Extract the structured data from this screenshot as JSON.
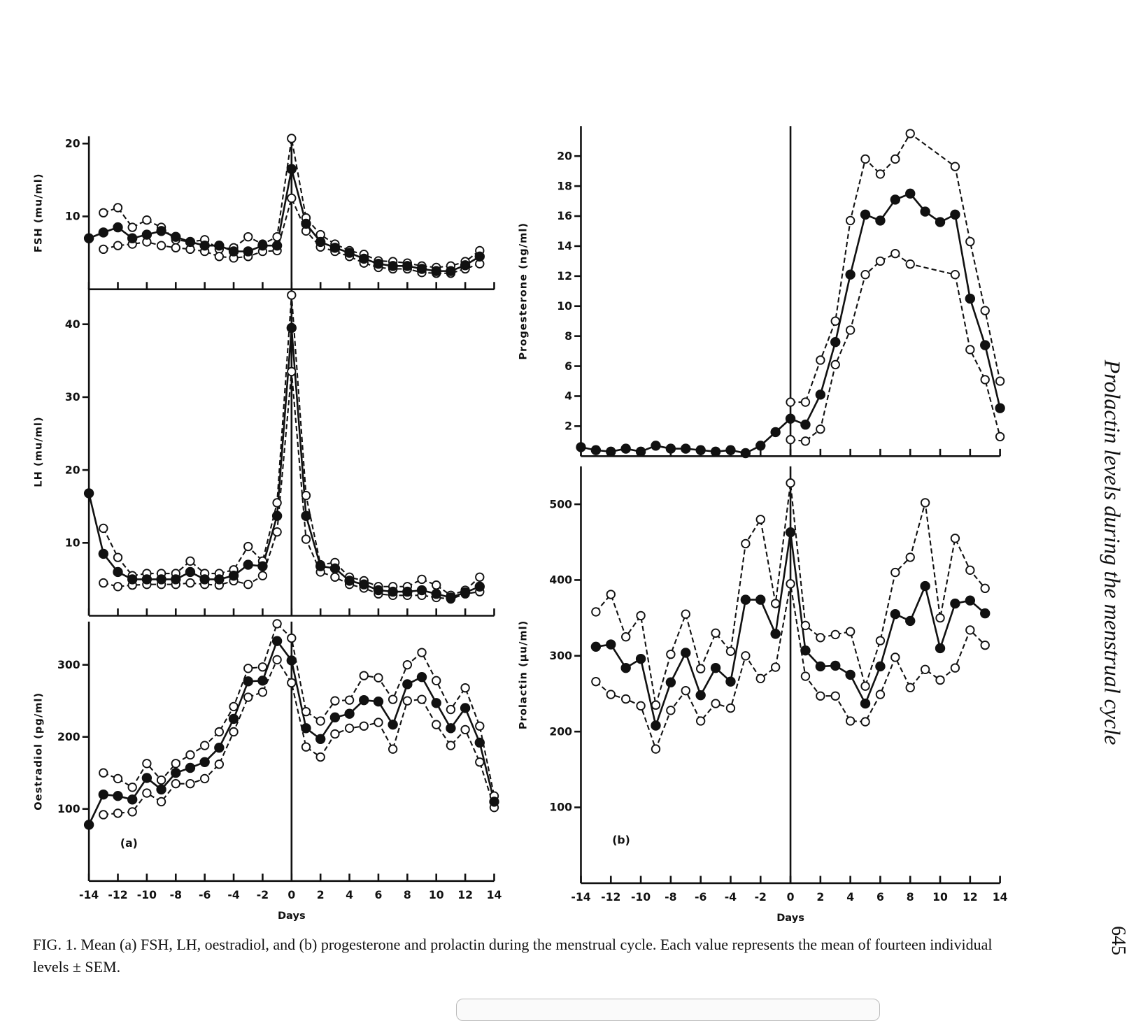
{
  "chart_data": [
    {
      "type": "line",
      "ylabel": "FSH (mu/ml)",
      "xlim": [
        -14,
        14
      ],
      "xticks": [
        -14,
        -12,
        -10,
        -8,
        -6,
        -4,
        -2,
        0,
        2,
        4,
        6,
        8,
        10,
        12,
        14
      ],
      "ylim": [
        0,
        21
      ],
      "yticks": [
        10,
        20
      ],
      "vline": 0,
      "x": [
        -14,
        -13,
        -12,
        -11,
        -10,
        -9,
        -8,
        -7,
        -6,
        -5,
        -4,
        -3,
        -2,
        -1,
        0,
        1,
        2,
        3,
        4,
        5,
        6,
        7,
        8,
        9,
        10,
        11,
        12,
        13,
        14
      ],
      "series": [
        {
          "color": "#111",
          "line": "dashed",
          "marker": "open",
          "values": [
            null,
            10.5,
            11.2,
            8.5,
            9.5,
            8.5,
            6.8,
            6.5,
            6.8,
            5.5,
            5.7,
            7.2,
            6.2,
            7.2,
            20.7,
            9.8,
            7.5,
            6.2,
            5.3,
            4.8,
            3.9,
            3.8,
            3.6,
            3.2,
            3,
            3.2,
            3.8,
            5.3,
            null
          ]
        },
        {
          "color": "#111",
          "line": "dashed",
          "marker": "open",
          "values": [
            null,
            5.5,
            6,
            6.2,
            6.5,
            6,
            5.7,
            5.5,
            5.2,
            4.5,
            4.3,
            4.5,
            5.2,
            5.3,
            12.5,
            8,
            5.8,
            5.2,
            4.5,
            3.6,
            3,
            2.8,
            2.8,
            2.3,
            2.2,
            2.2,
            2.8,
            3.5,
            null
          ]
        },
        {
          "color": "#111",
          "line": "solid",
          "marker": "filled",
          "values": [
            7,
            7.8,
            8.5,
            7,
            7.5,
            8,
            7.2,
            6.5,
            6,
            6,
            5.2,
            5.2,
            6,
            6,
            16.5,
            9,
            6.5,
            5.7,
            5,
            4.2,
            3.5,
            3.2,
            3.2,
            2.8,
            2.5,
            2.5,
            3.3,
            4.5,
            null
          ]
        }
      ]
    },
    {
      "type": "line",
      "ylabel": "LH (mu/ml)",
      "xlim": [
        -14,
        14
      ],
      "xticks": [
        -14,
        -12,
        -10,
        -8,
        -6,
        -4,
        -2,
        0,
        2,
        4,
        6,
        8,
        10,
        12,
        14
      ],
      "ylim": [
        0,
        45
      ],
      "yticks": [
        10,
        20,
        30,
        40
      ],
      "vline": 0,
      "x": [
        -14,
        -13,
        -12,
        -11,
        -10,
        -9,
        -8,
        -7,
        -6,
        -5,
        -4,
        -3,
        -2,
        -1,
        0,
        1,
        2,
        3,
        4,
        5,
        6,
        7,
        8,
        9,
        10,
        11,
        12,
        13,
        14
      ],
      "series": [
        {
          "color": "#111",
          "line": "dashed",
          "marker": "open",
          "values": [
            null,
            12,
            8,
            5.5,
            5.8,
            5.8,
            5.8,
            7.5,
            5.8,
            5.8,
            6.3,
            9.5,
            7.5,
            15.5,
            44,
            16.5,
            7,
            7.3,
            5.3,
            4.8,
            4,
            4,
            4,
            5,
            4.2,
            2.8,
            3.5,
            5.3,
            null
          ]
        },
        {
          "color": "#111",
          "line": "dashed",
          "marker": "open",
          "values": [
            null,
            4.5,
            4,
            4.2,
            4.3,
            4.3,
            4.3,
            4.5,
            4.3,
            4.2,
            4.8,
            4.3,
            5.5,
            11.5,
            33.5,
            10.5,
            6,
            5.3,
            4.3,
            3.8,
            3,
            2.8,
            2.8,
            2.8,
            2.5,
            2.3,
            3,
            3.3,
            null
          ]
        },
        {
          "color": "#111",
          "line": "solid",
          "marker": "filled",
          "values": [
            16.8,
            8.5,
            6,
            5,
            5,
            5,
            5,
            6,
            5,
            5,
            5.5,
            7,
            6.8,
            13.7,
            39.5,
            13.7,
            6.8,
            6.5,
            4.8,
            4.3,
            3.5,
            3.3,
            3.3,
            3.5,
            3,
            2.5,
            3.2,
            4,
            null
          ]
        }
      ]
    },
    {
      "type": "line",
      "ylabel": "Oestradiol (pg/ml)",
      "xlabel": "Days",
      "annotation": "(a)",
      "xlim": [
        -14,
        14
      ],
      "xticks": [
        -14,
        -12,
        -10,
        -8,
        -6,
        -4,
        -2,
        0,
        2,
        4,
        6,
        8,
        10,
        12,
        14
      ],
      "ylim": [
        0,
        360
      ],
      "yticks": [
        100,
        200,
        300
      ],
      "vline": 0,
      "x": [
        -14,
        -13,
        -12,
        -11,
        -10,
        -9,
        -8,
        -7,
        -6,
        -5,
        -4,
        -3,
        -2,
        -1,
        0,
        1,
        2,
        3,
        4,
        5,
        6,
        7,
        8,
        9,
        10,
        11,
        12,
        13,
        14
      ],
      "series": [
        {
          "color": "#111",
          "line": "dashed",
          "marker": "open",
          "values": [
            null,
            150,
            142,
            130,
            163,
            140,
            163,
            175,
            188,
            207,
            242,
            295,
            297,
            357,
            337,
            235,
            222,
            250,
            251,
            285,
            282,
            252,
            300,
            317,
            278,
            238,
            268,
            215,
            118
          ]
        },
        {
          "color": "#111",
          "line": "dashed",
          "marker": "open",
          "values": [
            null,
            92,
            94,
            96,
            122,
            110,
            135,
            135,
            142,
            162,
            207,
            255,
            262,
            307,
            275,
            186,
            172,
            204,
            212,
            215,
            220,
            183,
            250,
            252,
            217,
            188,
            210,
            165,
            102
          ]
        },
        {
          "color": "#111",
          "line": "solid",
          "marker": "filled",
          "values": [
            78,
            120,
            118,
            113,
            143,
            127,
            150,
            157,
            165,
            185,
            225,
            277,
            278,
            333,
            306,
            212,
            197,
            227,
            232,
            251,
            249,
            217,
            273,
            283,
            247,
            212,
            240,
            192,
            110
          ]
        }
      ]
    },
    {
      "type": "line",
      "ylabel": "Progesterone (ng/ml)",
      "xlim": [
        -14,
        14
      ],
      "xticks": [
        -14,
        -12,
        -10,
        -8,
        -6,
        -4,
        -2,
        0,
        2,
        4,
        6,
        8,
        10,
        12,
        14
      ],
      "ylim": [
        0,
        22
      ],
      "yticks": [
        2,
        4,
        6,
        8,
        10,
        12,
        14,
        16,
        18,
        20
      ],
      "vline": 0,
      "x": [
        -14,
        -13,
        -12,
        -11,
        -10,
        -9,
        -8,
        -7,
        -6,
        -5,
        -4,
        -3,
        -2,
        -1,
        0,
        1,
        2,
        3,
        4,
        5,
        6,
        7,
        8,
        9,
        10,
        11,
        12,
        13,
        14
      ],
      "series": [
        {
          "color": "#111",
          "line": "dashed",
          "marker": "open",
          "x": [
            0,
            1,
            2,
            3,
            4,
            5,
            6,
            7,
            8,
            11,
            12,
            13,
            14
          ],
          "values": [
            3.6,
            3.6,
            6.4,
            9,
            15.7,
            19.8,
            18.8,
            19.8,
            21.5,
            19.3,
            14.3,
            9.7,
            5
          ]
        },
        {
          "color": "#111",
          "line": "dashed",
          "marker": "open",
          "x": [
            0,
            1,
            2,
            3,
            4,
            5,
            6,
            7,
            8,
            11,
            12,
            13,
            14
          ],
          "values": [
            1.1,
            1,
            1.8,
            6.1,
            8.4,
            12.1,
            13,
            13.5,
            12.8,
            12.1,
            7.1,
            5.1,
            1.3
          ]
        },
        {
          "color": "#111",
          "line": "solid",
          "marker": "filled",
          "values": [
            0.6,
            0.4,
            0.3,
            0.5,
            0.3,
            0.7,
            0.5,
            0.5,
            0.4,
            0.3,
            0.4,
            0.2,
            0.7,
            1.6,
            2.5,
            2.1,
            4.1,
            7.6,
            12.1,
            16.1,
            15.7,
            17.1,
            17.5,
            16.3,
            15.6,
            16.1,
            10.5,
            7.4,
            3.2
          ]
        }
      ]
    },
    {
      "type": "line",
      "ylabel": "Prolactin (µu/ml)",
      "xlabel": "Days",
      "annotation": "(b)",
      "xlim": [
        -14,
        14
      ],
      "xticks": [
        -14,
        -12,
        -10,
        -8,
        -6,
        -4,
        -2,
        0,
        2,
        4,
        6,
        8,
        10,
        12,
        14
      ],
      "ylim": [
        0,
        550
      ],
      "yticks": [
        100,
        200,
        300,
        400,
        500
      ],
      "vline": 0,
      "x": [
        -13,
        -12,
        -11,
        -10,
        -9,
        -8,
        -7,
        -6,
        -5,
        -4,
        -3,
        -2,
        -1,
        0,
        1,
        2,
        3,
        4,
        5,
        6,
        7,
        8,
        9,
        10,
        11,
        12,
        13
      ],
      "series": [
        {
          "color": "#111",
          "line": "dashed",
          "marker": "open",
          "values": [
            358,
            381,
            325,
            353,
            235,
            302,
            355,
            283,
            330,
            306,
            448,
            480,
            369,
            528,
            340,
            324,
            328,
            332,
            260,
            320,
            410,
            430,
            502,
            350,
            455,
            413,
            389
          ]
        },
        {
          "color": "#111",
          "line": "dashed",
          "marker": "open",
          "values": [
            266,
            249,
            243,
            234,
            177,
            228,
            254,
            214,
            237,
            231,
            300,
            270,
            285,
            395,
            273,
            247,
            247,
            214,
            213,
            249,
            298,
            258,
            282,
            268,
            284,
            334,
            314
          ]
        },
        {
          "color": "#111",
          "line": "solid",
          "marker": "filled",
          "values": [
            312,
            315,
            284,
            296,
            208,
            265,
            304,
            248,
            284,
            266,
            374,
            374,
            329,
            463,
            307,
            286,
            287,
            275,
            237,
            286,
            355,
            346,
            392,
            310,
            369,
            373,
            356
          ]
        }
      ]
    }
  ],
  "caption": "FIG. 1. Mean (a) FSH, LH, oestradiol, and (b) progesterone and prolactin during the menstrual cycle. Each value represents the mean of fourteen individual levels ± SEM.",
  "running_head": "Prolactin levels during the menstrual cycle",
  "page_number": "645"
}
